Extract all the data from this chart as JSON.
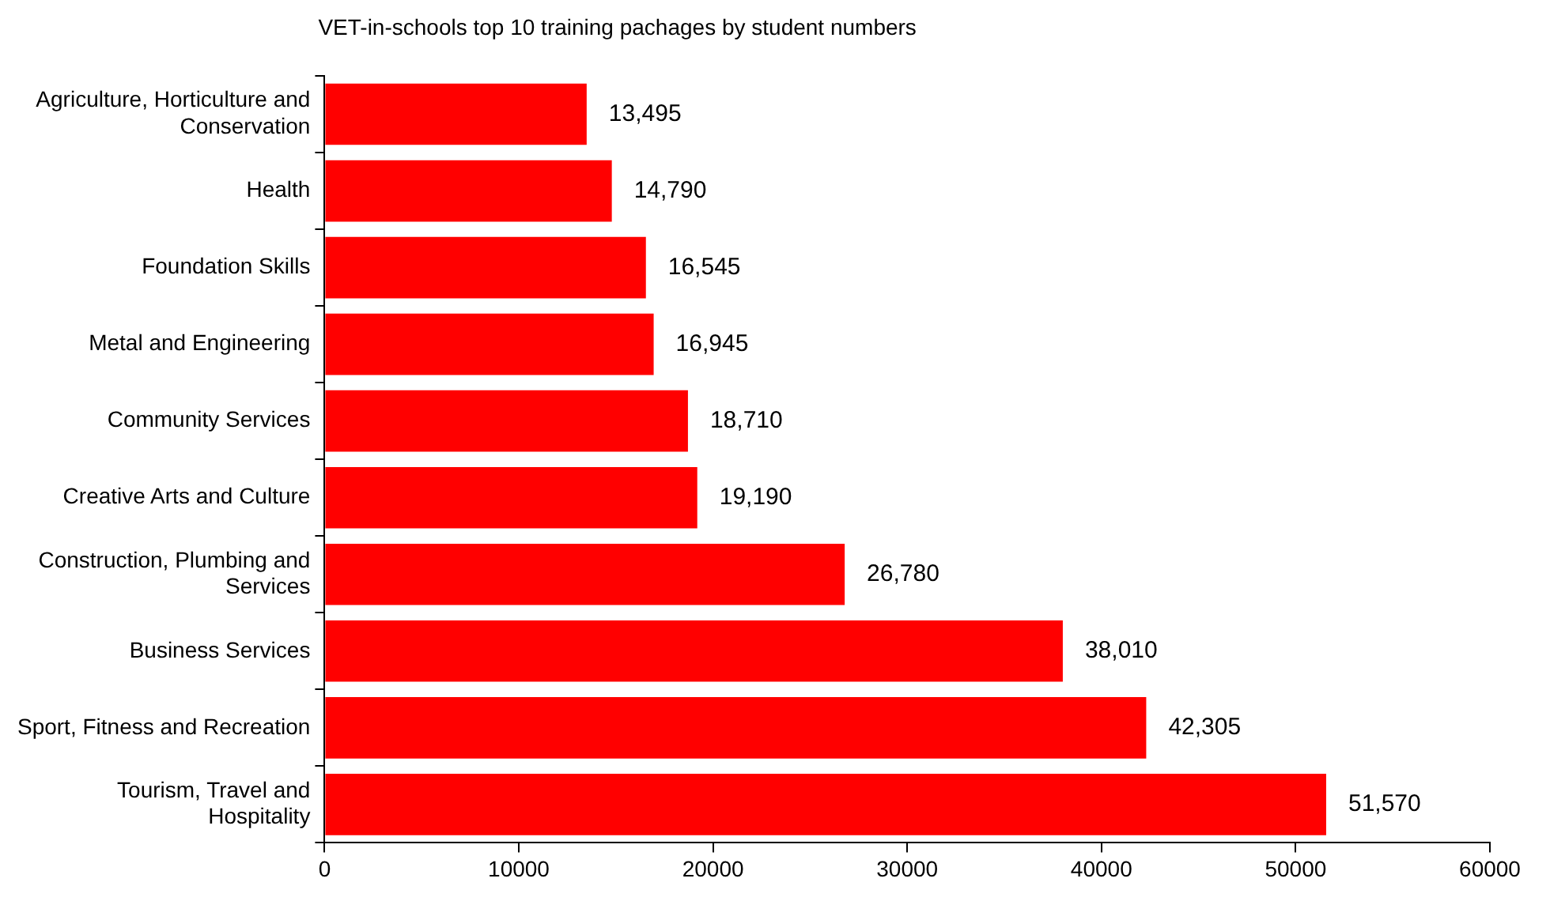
{
  "chart_data": {
    "type": "bar",
    "orientation": "horizontal",
    "title": "VET-in-schools top 10 training pachages by student numbers",
    "categories": [
      "Agriculture, Horticulture and Conservation",
      "Health",
      "Foundation Skills",
      "Metal and Engineering",
      "Community Services",
      "Creative Arts and Culture",
      "Construction, Plumbing and Services",
      "Business Services",
      "Sport, Fitness and Recreation",
      "Tourism, Travel and Hospitality"
    ],
    "values": [
      13495,
      14790,
      16545,
      16945,
      18710,
      19190,
      26780,
      38010,
      42305,
      51570
    ],
    "value_labels": [
      "13,495",
      "14,790",
      "16,545",
      "16,945",
      "18,710",
      "19,190",
      "26,780",
      "38,010",
      "42,305",
      "51,570"
    ],
    "color": "#ff0000",
    "xlim": [
      0,
      60000
    ],
    "xticks": [
      0,
      10000,
      20000,
      30000,
      40000,
      50000,
      60000
    ],
    "grid": false,
    "legend": false
  }
}
